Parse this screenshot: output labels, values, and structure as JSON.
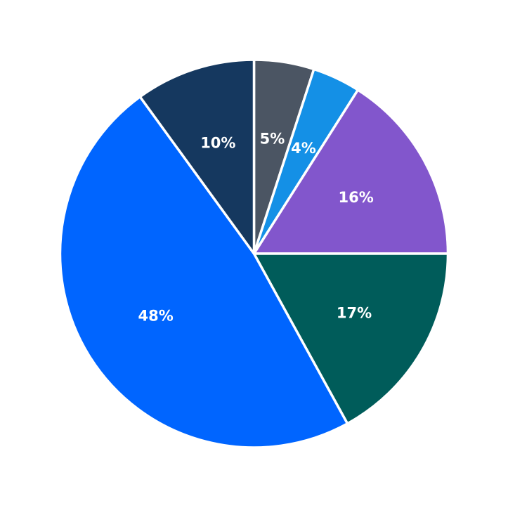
{
  "chart_data": {
    "type": "pie",
    "values": [
      5,
      4,
      16,
      17,
      48,
      10
    ],
    "labels": [
      "5%",
      "4%",
      "16%",
      "17%",
      "48%",
      "10%"
    ],
    "colors": [
      "#4b5563",
      "#1490e6",
      "#8256cc",
      "#005c5a",
      "#0065ff",
      "#15385f"
    ],
    "start_angle_deg": 90,
    "direction": "clockwise"
  }
}
